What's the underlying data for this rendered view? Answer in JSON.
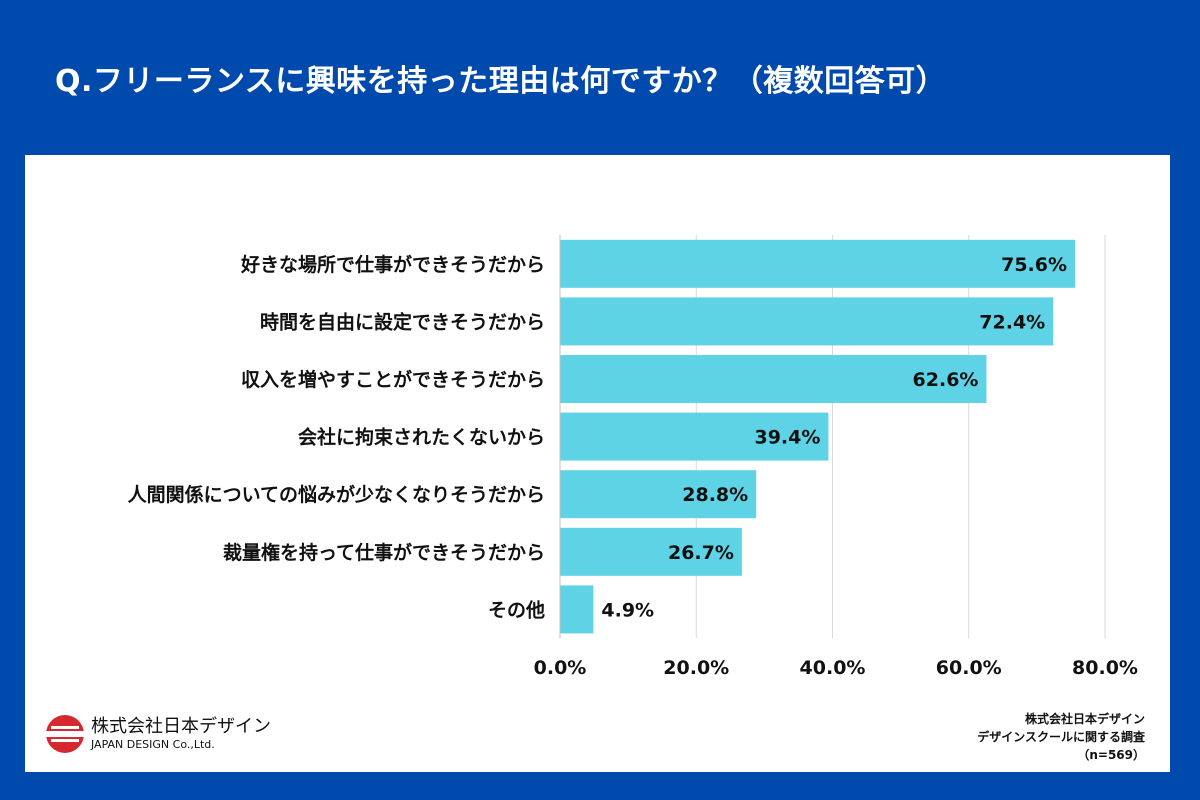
{
  "title": "Q.フリーランスに興味を持った理由は何ですか？（複数回答可）",
  "chart_data": {
    "type": "bar",
    "orientation": "horizontal",
    "categories": [
      "好きな場所で仕事ができそうだから",
      "時間を自由に設定できそうだから",
      "収入を増やすことができそうだから",
      "会社に拘束されたくないから",
      "人間関係についての悩みが少なくなりそうだから",
      "裁量権を持って仕事ができそうだから",
      "その他"
    ],
    "values": [
      75.6,
      72.4,
      62.6,
      39.4,
      28.8,
      26.7,
      4.9
    ],
    "value_labels": [
      "75.6%",
      "72.4%",
      "62.6%",
      "39.4%",
      "28.8%",
      "26.7%",
      "4.9%"
    ],
    "xlim": [
      0,
      80
    ],
    "ticks": [
      0,
      20,
      40,
      60,
      80
    ],
    "tick_labels": [
      "0.0%",
      "20.0%",
      "40.0%",
      "60.0%",
      "80.0%"
    ],
    "grid": true,
    "bar_color": "#5fd3e6"
  },
  "logo": {
    "company_jp": "株式会社日本デザイン",
    "company_en": "JAPAN DESIGN Co.,Ltd."
  },
  "source": {
    "line1": "株式会社日本デザイン",
    "line2": "デザインスクールに関する調査",
    "line3": "（n=569）"
  },
  "colors": {
    "background": "#0049ad",
    "bar": "#5fd3e6",
    "logo_red": "#d7282f"
  }
}
